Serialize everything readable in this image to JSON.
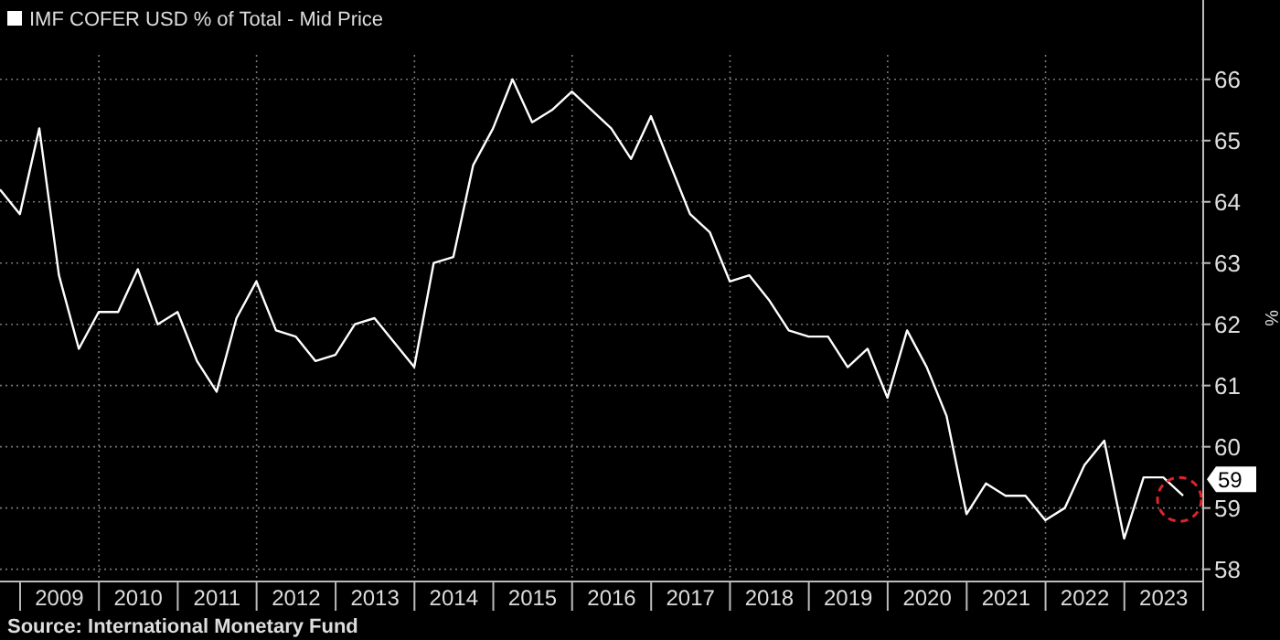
{
  "chart_data": {
    "type": "line",
    "legend": "top left",
    "grid": true,
    "ylabel": "%",
    "annotations": [
      {
        "text": "59",
        "x": "2023-09-30",
        "y": 59.2
      },
      "Source: International Monetary Fund"
    ],
    "x": [
      "2008-09-30",
      "2008-12-31",
      "2009-03-31",
      "2009-06-30",
      "2009-09-30",
      "2009-12-31",
      "2010-03-31",
      "2010-06-30",
      "2010-09-30",
      "2010-12-31",
      "2011-03-31",
      "2011-06-30",
      "2011-09-30",
      "2011-12-31",
      "2012-03-31",
      "2012-06-30",
      "2012-09-30",
      "2012-12-31",
      "2013-03-31",
      "2013-06-30",
      "2013-09-30",
      "2013-12-31",
      "2014-03-31",
      "2014-06-30",
      "2014-09-30",
      "2014-12-31",
      "2015-03-31",
      "2015-06-30",
      "2015-09-30",
      "2015-12-31",
      "2016-03-31",
      "2016-06-30",
      "2016-09-30",
      "2016-12-31",
      "2017-03-31",
      "2017-06-30",
      "2017-09-30",
      "2017-12-31",
      "2018-03-31",
      "2018-06-30",
      "2018-09-30",
      "2018-12-31",
      "2019-03-31",
      "2019-06-30",
      "2019-09-30",
      "2019-12-31",
      "2020-03-31",
      "2020-06-30",
      "2020-09-30",
      "2020-12-31",
      "2021-03-31",
      "2021-06-30",
      "2021-09-30",
      "2021-12-31",
      "2022-03-31",
      "2022-06-30",
      "2022-09-30",
      "2022-12-31",
      "2023-03-31",
      "2023-06-30",
      "2023-09-30"
    ],
    "series": [
      {
        "name": "IMF COFER USD % of Total - Mid Price",
        "color": "#ffffff",
        "values": [
          64.2,
          63.8,
          65.2,
          62.8,
          61.6,
          62.2,
          62.2,
          62.9,
          62.0,
          62.2,
          61.4,
          60.9,
          62.1,
          62.7,
          61.9,
          61.8,
          61.4,
          61.5,
          62.0,
          62.1,
          61.7,
          61.3,
          63.0,
          63.1,
          64.6,
          65.2,
          66.0,
          65.3,
          65.5,
          65.8,
          65.5,
          65.2,
          64.7,
          65.4,
          64.6,
          63.8,
          63.5,
          62.7,
          62.8,
          62.4,
          61.9,
          61.8,
          61.8,
          61.3,
          61.6,
          60.8,
          61.9,
          61.3,
          60.5,
          58.9,
          59.4,
          59.2,
          59.2,
          58.8,
          59.0,
          59.7,
          60.1,
          58.5,
          59.5,
          59.5,
          59.2
        ]
      }
    ],
    "xlim": [
      "2008-09-30",
      "2024-01-01"
    ],
    "xticks": [
      {
        "value": "2009-01-01",
        "label": null
      },
      {
        "value": "2009-07-02",
        "label": "2009"
      },
      {
        "value": "2010-01-01",
        "label": null
      },
      {
        "value": "2010-07-02",
        "label": "2010"
      },
      {
        "value": "2011-01-01",
        "label": null
      },
      {
        "value": "2011-07-02",
        "label": "2011"
      },
      {
        "value": "2012-01-01",
        "label": null
      },
      {
        "value": "2012-07-02",
        "label": "2012"
      },
      {
        "value": "2013-01-01",
        "label": null
      },
      {
        "value": "2013-07-02",
        "label": "2013"
      },
      {
        "value": "2014-01-01",
        "label": null
      },
      {
        "value": "2014-07-02",
        "label": "2014"
      },
      {
        "value": "2015-01-01",
        "label": null
      },
      {
        "value": "2015-07-02",
        "label": "2015"
      },
      {
        "value": "2016-01-01",
        "label": null
      },
      {
        "value": "2016-07-02",
        "label": "2016"
      },
      {
        "value": "2017-01-01",
        "label": null
      },
      {
        "value": "2017-07-02",
        "label": "2017"
      },
      {
        "value": "2018-01-01",
        "label": null
      },
      {
        "value": "2018-07-02",
        "label": "2018"
      },
      {
        "value": "2019-01-01",
        "label": null
      },
      {
        "value": "2019-07-02",
        "label": "2019"
      },
      {
        "value": "2020-01-01",
        "label": null
      },
      {
        "value": "2020-07-02",
        "label": "2020"
      },
      {
        "value": "2021-01-01",
        "label": null
      },
      {
        "value": "2021-07-02",
        "label": "2021"
      },
      {
        "value": "2022-01-01",
        "label": null
      },
      {
        "value": "2022-07-02",
        "label": "2022"
      },
      {
        "value": "2023-01-01",
        "label": null
      },
      {
        "value": "2023-07-02",
        "label": "2023"
      },
      {
        "value": "2024-01-01",
        "label": null
      }
    ],
    "ylim": [
      57.8,
      66.4
    ],
    "yticks": [
      58,
      59,
      60,
      61,
      62,
      63,
      64,
      65,
      66
    ]
  }
}
